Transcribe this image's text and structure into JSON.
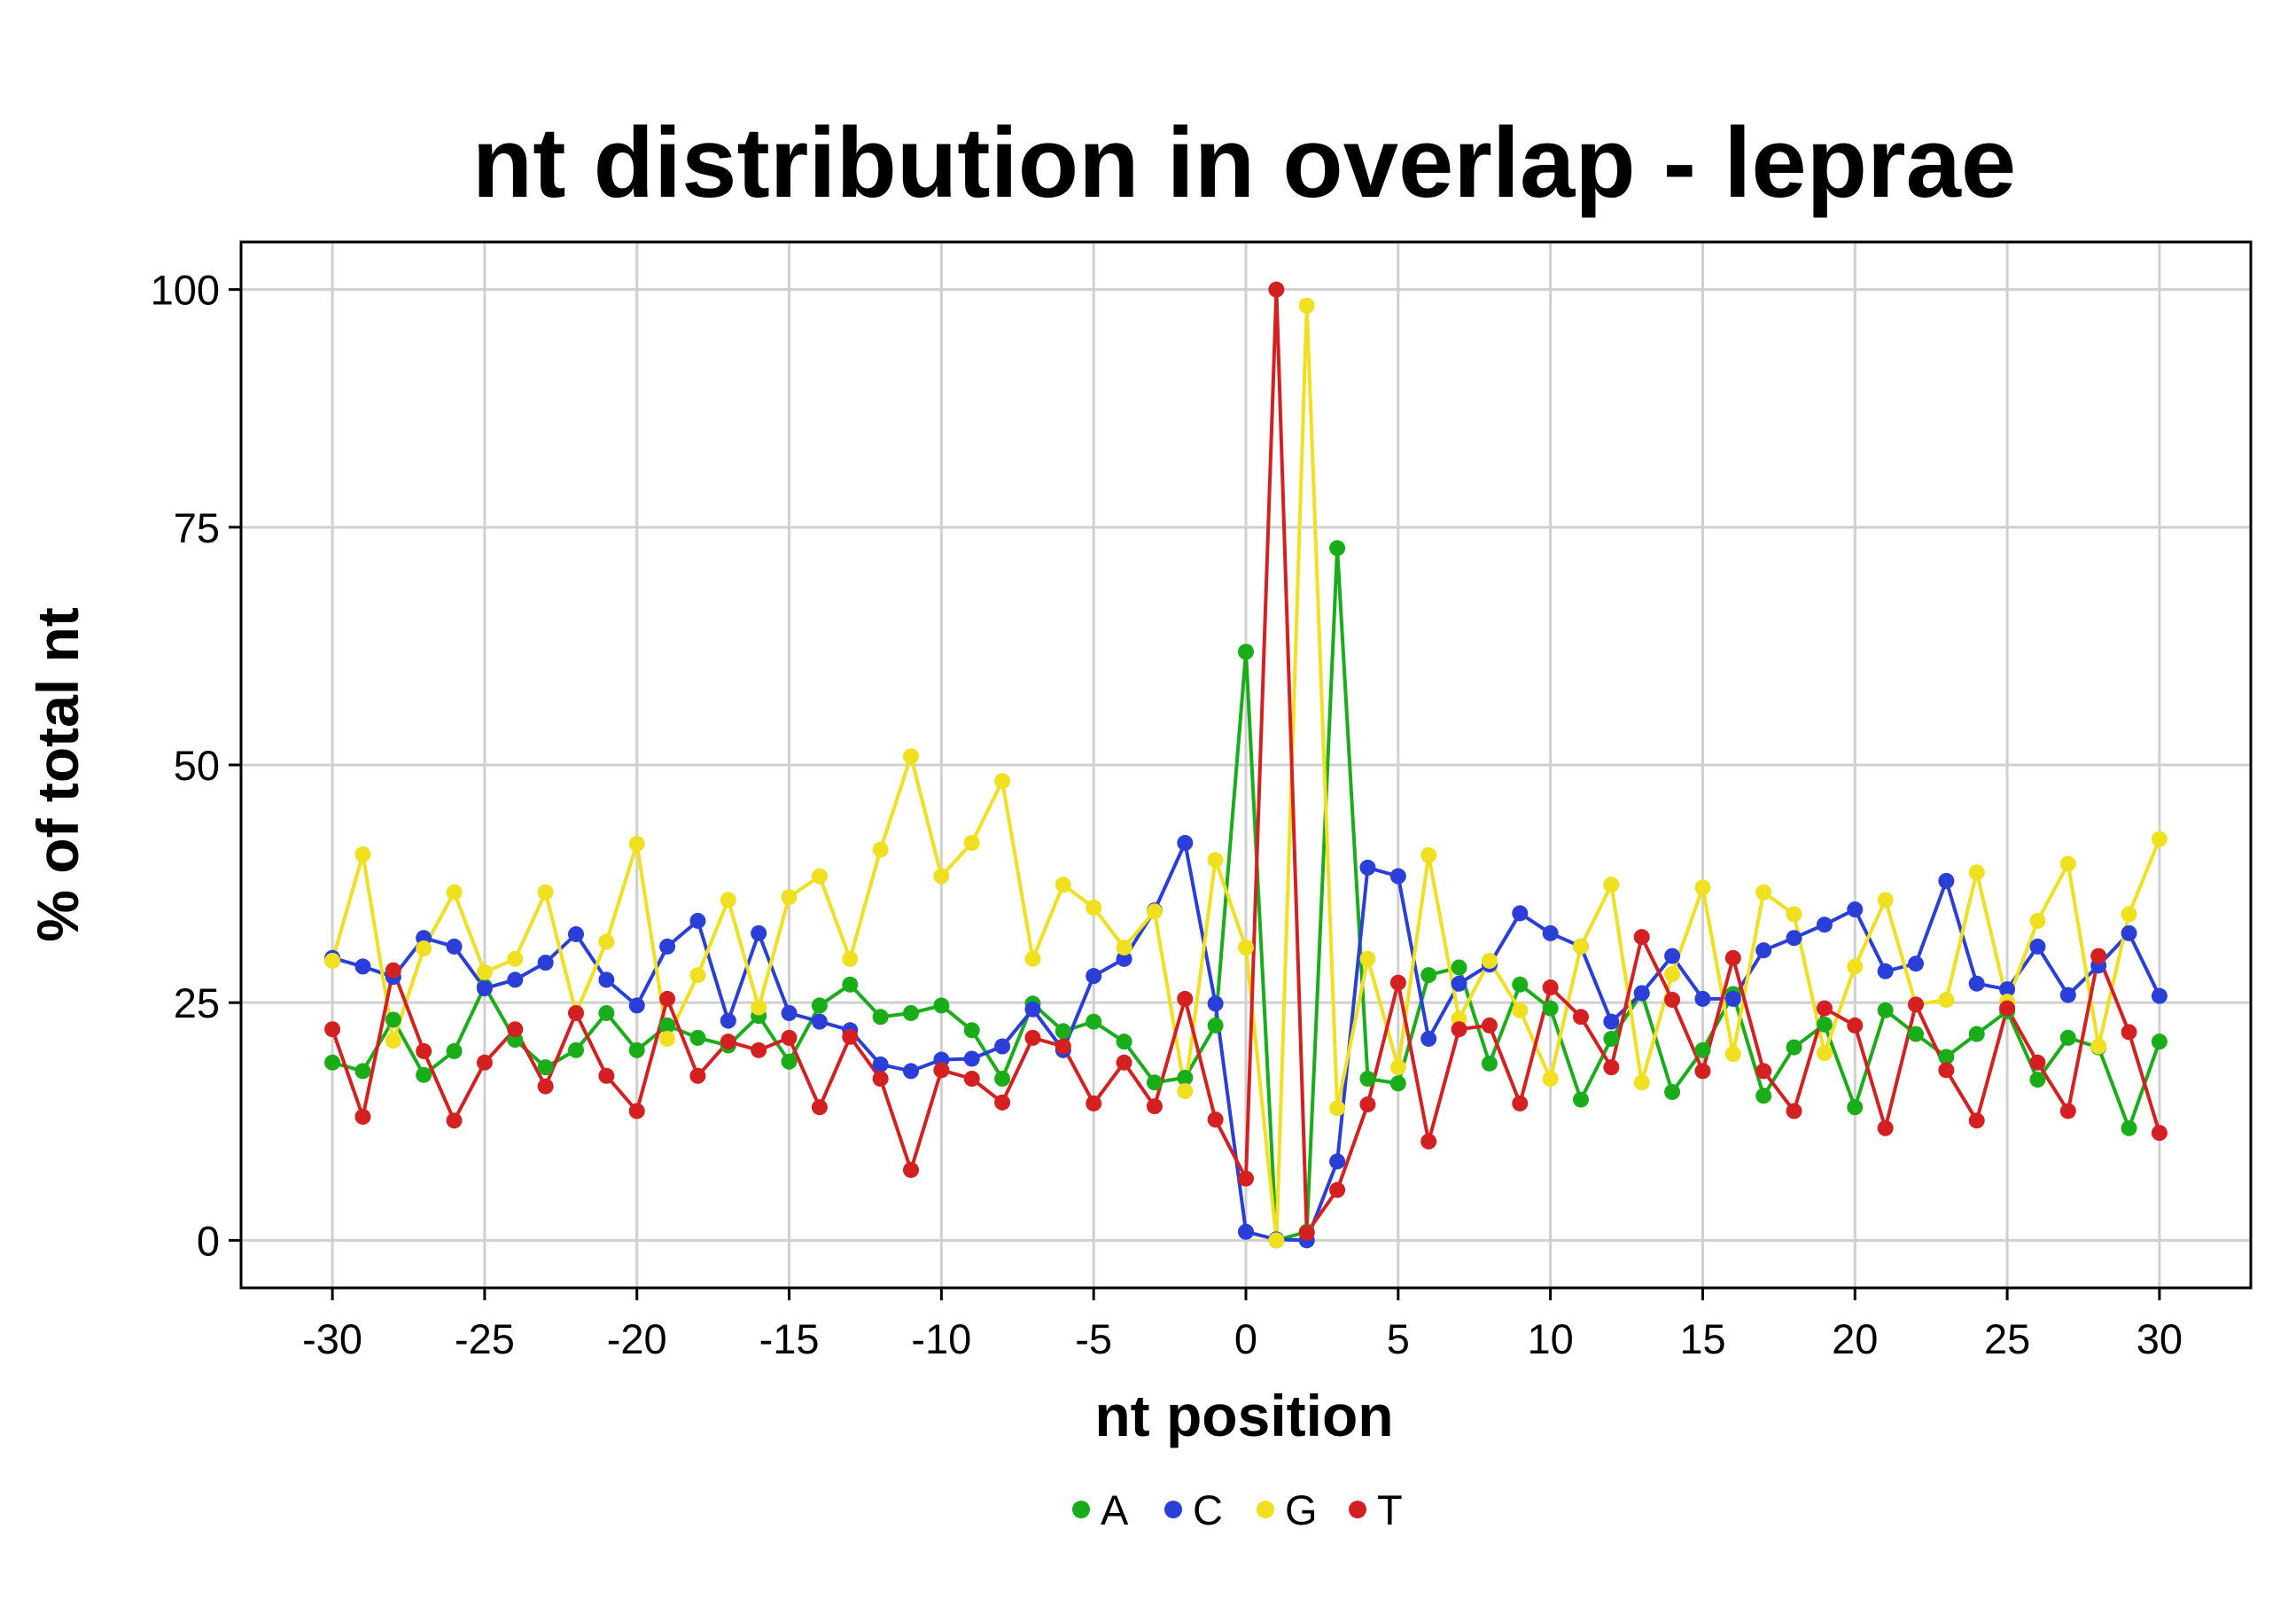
{
  "chart_data": {
    "type": "line",
    "title": "nt distribution in overlap - leprae",
    "xlabel": "nt position",
    "ylabel": "% of total nt",
    "xlim": [
      -33,
      33
    ],
    "ylim": [
      -5,
      105
    ],
    "xticks": [
      -30,
      -25,
      -20,
      -15,
      -10,
      -5,
      0,
      5,
      10,
      15,
      20,
      25,
      30
    ],
    "yticks": [
      0,
      25,
      50,
      75,
      100
    ],
    "grid": true,
    "legend_position": "bottom",
    "x": [
      -30,
      -29,
      -28,
      -27,
      -26,
      -25,
      -24,
      -23,
      -22,
      -21,
      -20,
      -19,
      -18,
      -17,
      -16,
      -15,
      -14,
      -13,
      -12,
      -11,
      -10,
      -9,
      -8,
      -7,
      -6,
      -5,
      -4,
      -3,
      -2,
      -1,
      0,
      1,
      2,
      3,
      4,
      5,
      6,
      7,
      8,
      9,
      10,
      11,
      12,
      13,
      14,
      15,
      16,
      17,
      18,
      19,
      20,
      21,
      22,
      23,
      24,
      25,
      26,
      27,
      28,
      29,
      30
    ],
    "series": [
      {
        "name": "A",
        "color": "#1aad1a",
        "values": [
          18.7,
          17.8,
          23.2,
          17.4,
          19.9,
          26.7,
          21.1,
          18.2,
          20.0,
          23.9,
          20.0,
          22.6,
          21.3,
          20.5,
          23.6,
          18.8,
          24.7,
          26.9,
          23.5,
          23.9,
          24.7,
          22.1,
          17.0,
          24.9,
          22.0,
          23.0,
          20.9,
          16.6,
          17.1,
          22.6,
          61.9,
          0.0,
          0.9,
          72.8,
          17.0,
          16.5,
          27.9,
          28.7,
          18.6,
          26.9,
          24.4,
          14.8,
          21.2,
          26.0,
          15.6,
          20.0,
          25.9,
          15.2,
          20.3,
          22.7,
          14.0,
          24.2,
          21.7,
          19.3,
          21.7,
          24.1,
          16.9,
          21.3,
          20.3,
          11.8,
          20.9
        ]
      },
      {
        "name": "C",
        "color": "#2a3fd8",
        "values": [
          29.7,
          28.8,
          27.7,
          31.8,
          30.9,
          26.5,
          27.4,
          29.2,
          32.2,
          27.4,
          24.7,
          30.9,
          33.6,
          23.1,
          32.3,
          23.9,
          23.0,
          22.1,
          18.5,
          17.8,
          19.0,
          19.1,
          20.4,
          24.3,
          20.0,
          27.8,
          29.6,
          34.7,
          41.8,
          24.9,
          0.9,
          0.1,
          0.0,
          8.3,
          39.2,
          38.3,
          21.2,
          27.0,
          29.0,
          34.4,
          32.3,
          30.9,
          23.0,
          26.0,
          29.9,
          25.4,
          25.4,
          30.5,
          31.8,
          33.2,
          34.8,
          28.3,
          29.1,
          37.8,
          27.0,
          26.4,
          30.9,
          25.8,
          28.9,
          32.3,
          25.7
        ]
      },
      {
        "name": "G",
        "color": "#f0e020",
        "values": [
          29.4,
          40.6,
          21.0,
          30.7,
          36.6,
          28.2,
          29.6,
          36.6,
          23.9,
          31.4,
          41.7,
          21.2,
          27.9,
          35.8,
          24.5,
          36.1,
          38.3,
          29.6,
          41.1,
          50.9,
          38.3,
          41.8,
          48.3,
          29.6,
          37.4,
          35.0,
          30.8,
          34.6,
          15.7,
          40.0,
          30.8,
          0.0,
          98.3,
          13.9,
          29.6,
          18.2,
          40.5,
          23.3,
          29.4,
          24.2,
          17.0,
          30.9,
          37.4,
          16.6,
          28.0,
          37.1,
          19.6,
          36.6,
          34.3,
          19.7,
          28.8,
          35.8,
          24.8,
          25.3,
          38.7,
          25.1,
          33.6,
          39.6,
          20.4,
          34.3,
          42.2
        ]
      },
      {
        "name": "T",
        "color": "#d42020",
        "values": [
          22.2,
          13.0,
          28.4,
          19.9,
          12.6,
          18.7,
          22.2,
          16.2,
          23.9,
          17.3,
          13.6,
          25.4,
          17.3,
          20.9,
          20.0,
          21.3,
          14.0,
          21.4,
          17.0,
          7.4,
          17.9,
          17.0,
          14.5,
          21.3,
          20.4,
          14.4,
          18.7,
          14.1,
          25.4,
          12.7,
          6.5,
          100.0,
          0.8,
          5.3,
          14.3,
          27.1,
          10.4,
          22.2,
          22.6,
          14.4,
          26.6,
          23.5,
          18.2,
          31.9,
          25.3,
          17.8,
          29.7,
          17.8,
          13.6,
          24.4,
          22.6,
          11.8,
          24.8,
          17.9,
          12.6,
          24.4,
          18.7,
          13.6,
          29.9,
          21.9,
          11.3
        ]
      }
    ]
  }
}
